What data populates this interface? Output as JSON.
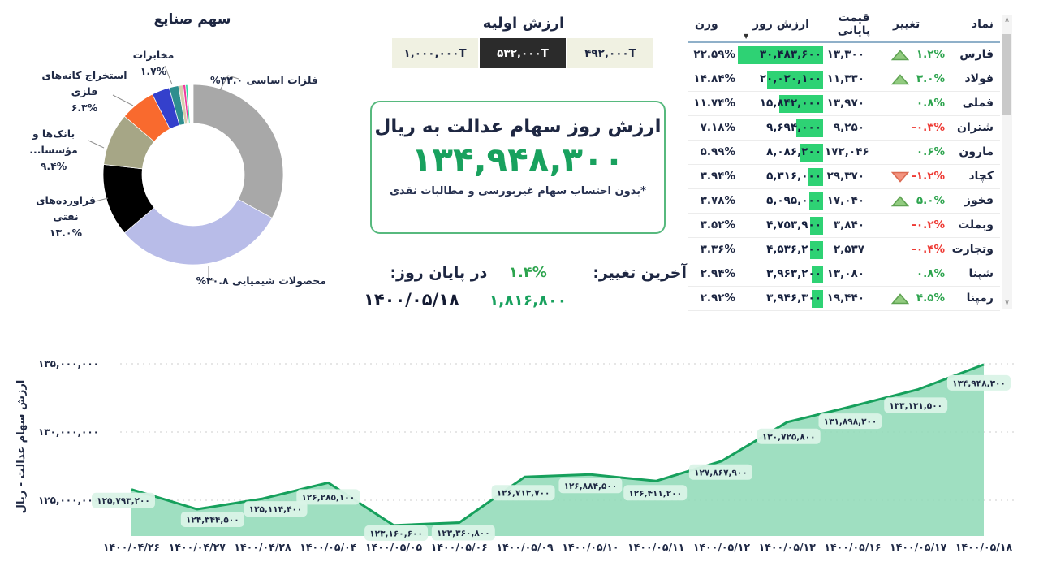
{
  "colors": {
    "accent_green": "#19a15e",
    "bar_green": "#2ed274",
    "positive_green": "#2da44e",
    "negative_red": "#ee3a34",
    "dark_text": "#1e2742",
    "selected_button_bg": "#2b2b2b",
    "light_button_bg": "#f0f1e2",
    "box_border": "#57b97e"
  },
  "initial_value": {
    "title": "ارزش اولیه",
    "options": [
      "۱,۰۰۰,۰۰۰T",
      "۵۳۲,۰۰۰T",
      "۴۹۲,۰۰۰T"
    ],
    "selected_index": 1
  },
  "value_box": {
    "title": "ارزش روز سهام عدالت به ریال",
    "value": 134948300,
    "footnote": "*بدون احتساب سهام غیربورسی و مطالبات نقدی"
  },
  "last_change": {
    "label": "آخرین تغییر:",
    "percent": 1.4,
    "amount": 1816800,
    "date_label": "در پایان روز:",
    "date": "۱۴۰۰/۰۵/۱۸"
  },
  "table": {
    "headers": {
      "symbol": "نماد",
      "change": "تغییر",
      "closing": "قیمت پایانی",
      "day_value": "ارزش روز",
      "weight": "وزن"
    },
    "rows": [
      {
        "symbol": "فارس",
        "change": 1.2,
        "arrow": "up",
        "closing": 13300,
        "day_value": 30483600,
        "weight": 22.59
      },
      {
        "symbol": "فولاد",
        "change": 3.0,
        "arrow": "up",
        "closing": 11330,
        "day_value": 20020100,
        "weight": 14.84
      },
      {
        "symbol": "فملی",
        "change": 0.8,
        "arrow": "",
        "closing": 13970,
        "day_value": 15842000,
        "weight": 11.74
      },
      {
        "symbol": "شتران",
        "change": -0.3,
        "arrow": "",
        "closing": 9250,
        "day_value": 9694000,
        "weight": 7.18
      },
      {
        "symbol": "مارون",
        "change": 0.6,
        "arrow": "",
        "closing": 172046,
        "day_value": 8086200,
        "weight": 5.99
      },
      {
        "symbol": "کچاد",
        "change": -1.2,
        "arrow": "down",
        "closing": 29370,
        "day_value": 5316000,
        "weight": 3.94
      },
      {
        "symbol": "فخوز",
        "change": 5.0,
        "arrow": "up",
        "closing": 17040,
        "day_value": 5095000,
        "weight": 3.78
      },
      {
        "symbol": "وبملت",
        "change": -0.2,
        "arrow": "",
        "closing": 3840,
        "day_value": 4753900,
        "weight": 3.52
      },
      {
        "symbol": "وتجارت",
        "change": -0.4,
        "arrow": "",
        "closing": 2537,
        "day_value": 4536200,
        "weight": 3.36
      },
      {
        "symbol": "شپنا",
        "change": 0.8,
        "arrow": "",
        "closing": 13080,
        "day_value": 3963200,
        "weight": 2.94
      },
      {
        "symbol": "رمپنا",
        "change": 4.5,
        "arrow": "up",
        "closing": 19440,
        "day_value": 3946300,
        "weight": 2.92
      }
    ]
  },
  "chart_data": [
    {
      "type": "pie",
      "donut": true,
      "title": "سهم صنایع",
      "legend_position": "callout-labels",
      "segments": [
        {
          "label": "فلزات اساسی",
          "value": 33.0,
          "color": "#a8a8a8"
        },
        {
          "label": "محصولات شیمیایی",
          "value": 30.8,
          "color": "#b8bce8"
        },
        {
          "label": "فراورده‌های نفتی",
          "value": 13.0,
          "color": "#000000"
        },
        {
          "label": "بانک‌ها و مؤسسا...",
          "value": 9.4,
          "color": "#a6a686"
        },
        {
          "label": "استخراج کانه‌های فلزی",
          "value": 6.3,
          "color": "#f96a2e"
        },
        {
          "label": "",
          "value": 3.2,
          "color": "#3440cc"
        },
        {
          "label": "مخابرات",
          "value": 1.7,
          "color": "#2e8e8e"
        },
        {
          "label": "",
          "value": 0.8,
          "color": "#d6ceae"
        },
        {
          "label": "",
          "value": 0.45,
          "color": "#f03a9e"
        },
        {
          "label": "",
          "value": 0.35,
          "color": "#30d9a0"
        }
      ]
    },
    {
      "type": "area",
      "title": "",
      "xlabel": "",
      "ylabel": "ارزش سهام عدالت - ریال",
      "grid": "dotted-horizontal",
      "ylim": [
        122400000,
        135600000
      ],
      "yticks": [
        125000000,
        130000000,
        135000000
      ],
      "x": [
        "۱۴۰۰/۰۴/۲۶",
        "۱۴۰۰/۰۴/۲۷",
        "۱۴۰۰/۰۴/۲۸",
        "۱۴۰۰/۰۵/۰۴",
        "۱۴۰۰/۰۵/۰۵",
        "۱۴۰۰/۰۵/۰۶",
        "۱۴۰۰/۰۵/۰۹",
        "۱۴۰۰/۰۵/۱۰",
        "۱۴۰۰/۰۵/۱۱",
        "۱۴۰۰/۰۵/۱۲",
        "۱۴۰۰/۰۵/۱۳",
        "۱۴۰۰/۰۵/۱۶",
        "۱۴۰۰/۰۵/۱۷",
        "۱۴۰۰/۰۵/۱۸"
      ],
      "values": [
        125793200,
        124344500,
        125114400,
        126285100,
        123160600,
        123360800,
        126713700,
        126884500,
        126411200,
        127867900,
        130725800,
        131898200,
        133131500,
        134948300
      ],
      "line_color": "#16a05c",
      "fill_color": "#8ed9b6",
      "label_bg": "#daf3e7"
    }
  ]
}
